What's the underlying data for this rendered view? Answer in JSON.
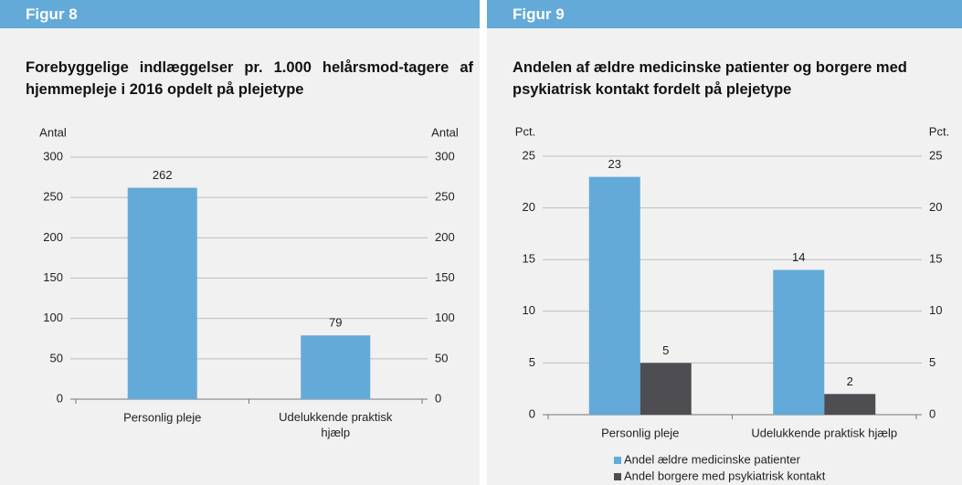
{
  "chart_data": [
    {
      "type": "bar",
      "header": "Figur 8",
      "title": "Forebyggelige indlæggelser pr. 1.000 helårsmod-tagere af hjemmepleje i 2016 opdelt på plejetype",
      "ylabel": "Antal",
      "categories": [
        "Personlig pleje",
        "Udelukkende praktisk hjælp"
      ],
      "values": [
        262,
        79
      ],
      "color": "#63aad8",
      "ylim": [
        0,
        300
      ],
      "yticks": [
        0,
        50,
        100,
        150,
        200,
        250,
        300
      ],
      "grid": true
    },
    {
      "type": "bar",
      "header": "Figur 9",
      "title": "Andelen af ældre medicinske patienter og borgere med psykiatrisk kontakt fordelt på plejetype",
      "ylabel": "Pct.",
      "categories": [
        "Personlig pleje",
        "Udelukkende praktisk hjælp"
      ],
      "series": [
        {
          "name": "Andel ældre medicinske patienter",
          "color": "#63aad8",
          "values": [
            23,
            14
          ]
        },
        {
          "name": "Andel borgere med psykiatrisk kontakt",
          "color": "#4d4d52",
          "values": [
            5,
            2
          ]
        }
      ],
      "ylim": [
        0,
        25
      ],
      "yticks": [
        0,
        5,
        10,
        15,
        20,
        25
      ],
      "grid": true,
      "legend": "bottom"
    }
  ]
}
